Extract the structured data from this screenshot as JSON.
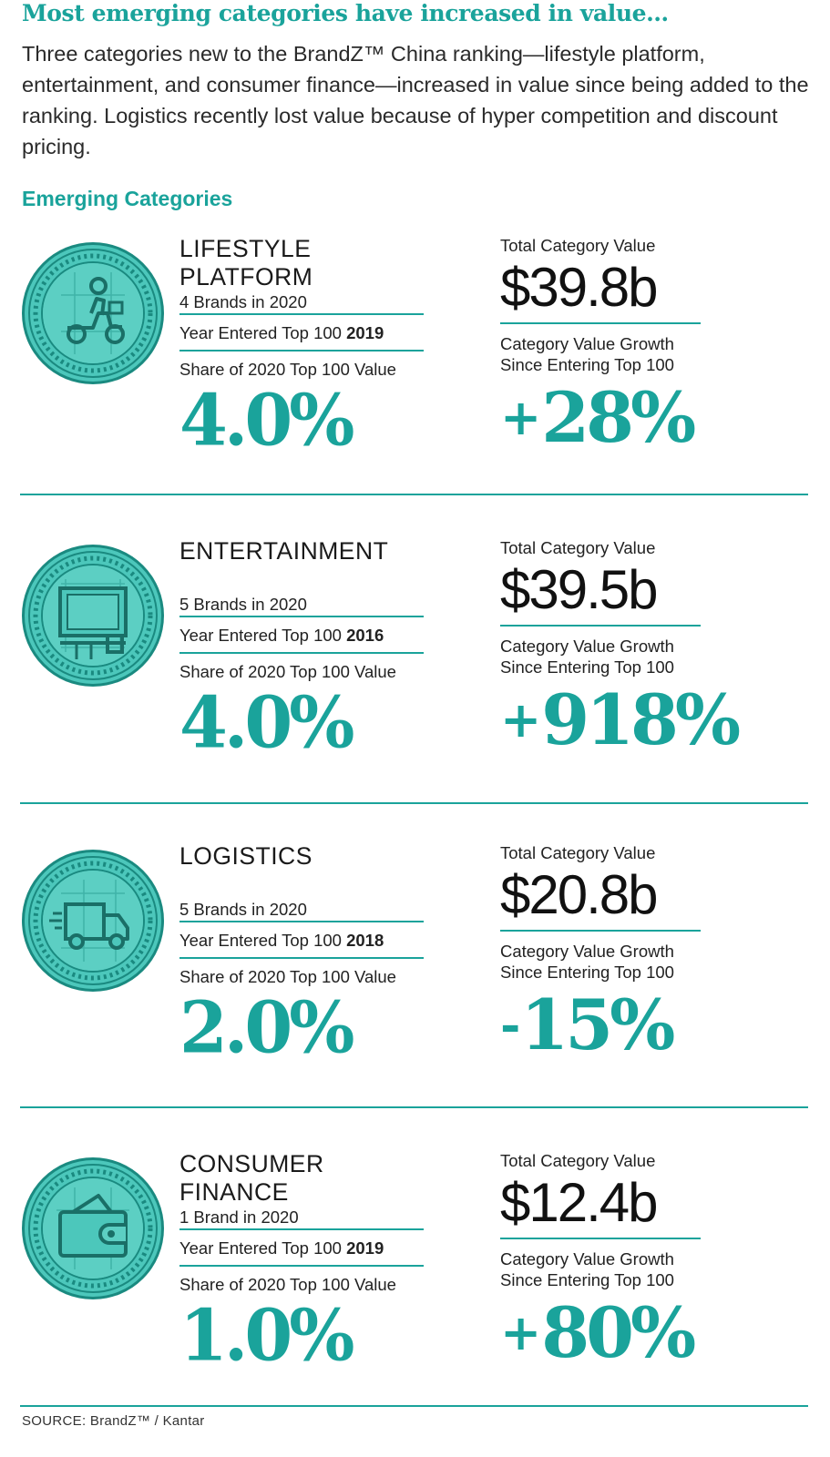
{
  "headline": "Most emerging categories have increased in value…",
  "intro": "Three categories new to the BrandZ™ China ranking—lifestyle platform, entertainment, and consumer finance—increased in value since being added to the ranking. Logistics recently lost value because of hyper competition and discount pricing.",
  "section_title": "Emerging Categories",
  "labels": {
    "year_entered": "Year Entered Top 100",
    "share": "Share of 2020 Top 100 Value",
    "total_value": "Total Category Value",
    "growth_line1": "Category Value Growth",
    "growth_line2": "Since Entering Top 100"
  },
  "categories": [
    {
      "name_line1": "LIFESTYLE",
      "name_line2": "PLATFORM",
      "brands": "4 Brands in 2020",
      "year": "2019",
      "share": "4.0%",
      "total_value": "$39.8b",
      "growth_sign": "+",
      "growth_num": "28%",
      "icon": "scooter-delivery-icon"
    },
    {
      "name_line1": "ENTERTAINMENT",
      "name_line2": "",
      "brands": "5 Brands in 2020",
      "year": "2016",
      "share": "4.0%",
      "total_value": "$39.5b",
      "growth_sign": "+",
      "growth_num": "918%",
      "icon": "tv-screen-icon"
    },
    {
      "name_line1": "LOGISTICS",
      "name_line2": "",
      "brands": "5 Brands in 2020",
      "year": "2018",
      "share": "2.0%",
      "total_value": "$20.8b",
      "growth_sign": "-",
      "growth_num": "15%",
      "icon": "delivery-truck-icon"
    },
    {
      "name_line1": "CONSUMER",
      "name_line2": "FINANCE",
      "brands": "1 Brand in 2020",
      "year": "2019",
      "share": "1.0%",
      "total_value": "$12.4b",
      "growth_sign": "+",
      "growth_num": "80%",
      "icon": "wallet-icon"
    }
  ],
  "source": "SOURCE: BrandZ™ / Kantar",
  "colors": {
    "accent": "#1aa39b",
    "medal_fill": "#4cc7bb",
    "medal_dark": "#1a8a80"
  }
}
